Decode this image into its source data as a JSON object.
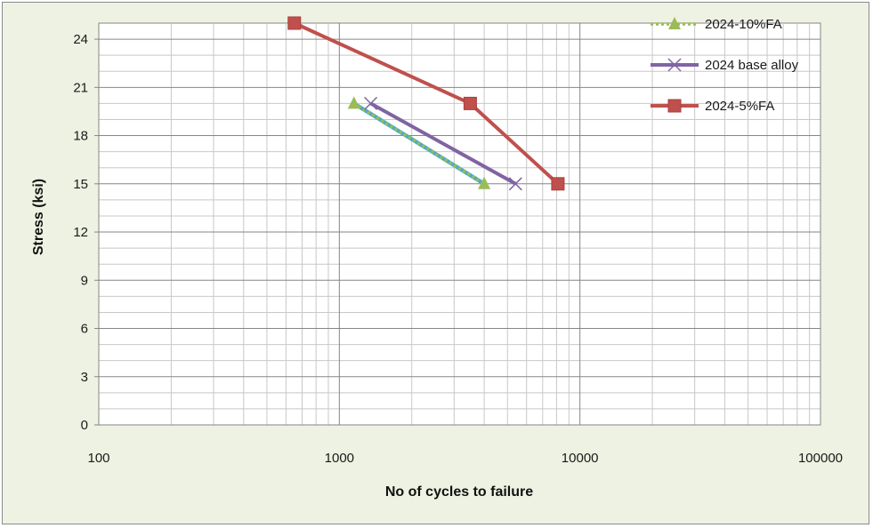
{
  "chart_data": {
    "type": "line",
    "title": "",
    "xlabel": "No of cycles to failure",
    "ylabel": "Stress (ksi)",
    "xscale": "log",
    "xlim": [
      100,
      100000
    ],
    "ylim": [
      0,
      25
    ],
    "x_ticks": [
      100,
      1000,
      10000,
      100000
    ],
    "x_tick_labels": [
      "100",
      "1000",
      "10000",
      "100000"
    ],
    "y_ticks": [
      0,
      3,
      6,
      9,
      12,
      15,
      18,
      21,
      24
    ],
    "y_tick_labels": [
      "0",
      "3",
      "6",
      "9",
      "12",
      "15",
      "18",
      "21",
      "24"
    ],
    "grid": true,
    "legend_position": "top-right",
    "series": [
      {
        "name": "2024-10%FA",
        "marker": "triangle",
        "color": "#9bbb59",
        "dash": "dotted",
        "points": [
          {
            "x": 1150,
            "y": 20
          },
          {
            "x": 4000,
            "y": 15
          }
        ]
      },
      {
        "name": "2024 base alloy",
        "marker": "x",
        "color": "#8064a2",
        "dash": "solid",
        "points": [
          {
            "x": 1350,
            "y": 20
          },
          {
            "x": 5400,
            "y": 15
          }
        ]
      },
      {
        "name": "2024-5%FA",
        "marker": "square",
        "color": "#c0504d",
        "dash": "solid",
        "points": [
          {
            "x": 650,
            "y": 25
          },
          {
            "x": 3500,
            "y": 20
          },
          {
            "x": 8100,
            "y": 15
          }
        ]
      }
    ],
    "extra_line": {
      "color": "#4bacc6",
      "points": [
        {
          "x": 1150,
          "y": 20
        },
        {
          "x": 4000,
          "y": 15
        }
      ]
    }
  }
}
